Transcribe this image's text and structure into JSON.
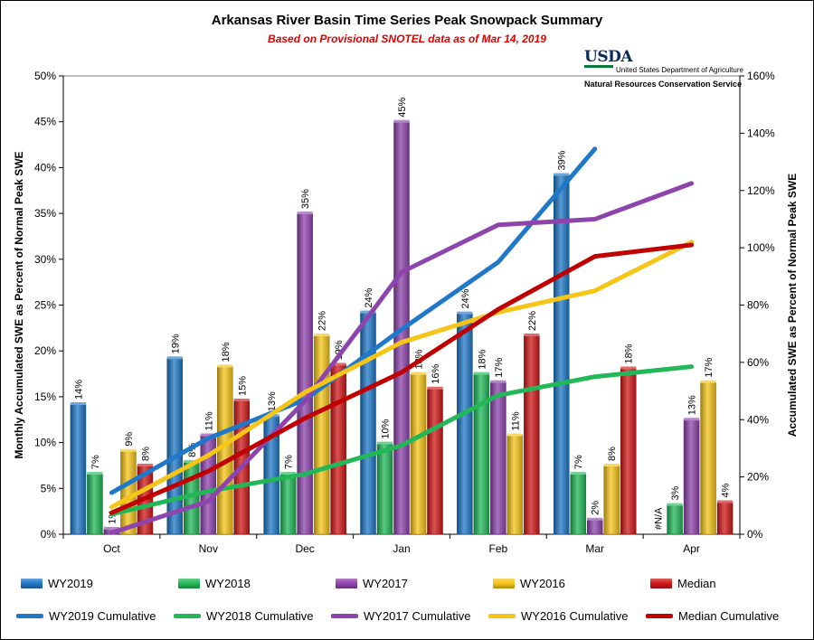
{
  "header": {
    "title": "Arkansas River Basin Time Series Peak Snowpack Summary",
    "subtitle": "Based on Provisional SNOTEL data as of Mar 14, 2019"
  },
  "logo": {
    "agency_short": "USDA",
    "department": "United States Department of Agriculture",
    "service": "Natural Resources Conservation Service"
  },
  "chart_data": {
    "type": "bar",
    "categories": [
      "Oct",
      "Nov",
      "Dec",
      "Jan",
      "Feb",
      "Mar",
      "Apr"
    ],
    "ylabel": "Monthly Accumulated SWE as Percent of Normal Peak SWE",
    "y2label": "Accumulated SWE as Percent of Normal Peak SWE",
    "ylim": [
      0,
      50
    ],
    "y2lim": [
      0,
      160
    ],
    "yticks": [
      0,
      5,
      10,
      15,
      20,
      25,
      30,
      35,
      40,
      45,
      50
    ],
    "y2ticks": [
      0,
      20,
      40,
      60,
      80,
      100,
      120,
      140,
      160
    ],
    "bar_series": [
      {
        "name": "WY2019",
        "color": "#1f78c8",
        "values": [
          14.2,
          19.2,
          12.9,
          24.2,
          24.1,
          39.2,
          null
        ],
        "labels": [
          "14%",
          "19%",
          "13%",
          "24%",
          "24%",
          "39%",
          "#N/A"
        ]
      },
      {
        "name": "WY2018",
        "color": "#22b858",
        "values": [
          6.6,
          7.9,
          6.6,
          9.9,
          17.5,
          6.6,
          3.2
        ],
        "labels": [
          "7%",
          "8%",
          "7%",
          "10%",
          "18%",
          "7%",
          "3%"
        ]
      },
      {
        "name": "WY2017",
        "color": "#8e44ad",
        "values": [
          0.6,
          10.8,
          35.0,
          45.0,
          16.6,
          1.6,
          12.5
        ],
        "labels": [
          "1%",
          "11%",
          "35%",
          "45%",
          "17%",
          "2%",
          "13%"
        ]
      },
      {
        "name": "WY2016",
        "color": "#f5c518",
        "values": [
          9.1,
          18.3,
          21.7,
          17.5,
          10.8,
          7.5,
          16.6
        ],
        "labels": [
          "9%",
          "18%",
          "22%",
          "18%",
          "11%",
          "8%",
          "17%"
        ]
      },
      {
        "name": "Median",
        "color": "#d01818",
        "values": [
          7.5,
          14.6,
          18.5,
          15.9,
          21.7,
          18.1,
          3.5
        ],
        "labels": [
          "8%",
          "15%",
          "19%",
          "16%",
          "22%",
          "18%",
          "4%"
        ]
      }
    ],
    "line_series": [
      {
        "name": "WY2019 Cumulative",
        "color": "#1f78c8",
        "values": [
          14.5,
          33.5,
          47,
          71.5,
          95,
          134.5,
          null
        ]
      },
      {
        "name": "WY2018 Cumulative",
        "color": "#22b858",
        "values": [
          7,
          15,
          21,
          31,
          48.5,
          55,
          58.5
        ]
      },
      {
        "name": "WY2017 Cumulative",
        "color": "#8e44ad",
        "values": [
          0.5,
          11.5,
          46.5,
          91.5,
          108,
          110,
          122.5
        ]
      },
      {
        "name": "WY2016 Cumulative",
        "color": "#f5c518",
        "values": [
          9.5,
          27.5,
          49.5,
          67,
          77.5,
          85,
          102
        ]
      },
      {
        "name": "Median Cumulative",
        "color": "#c00000",
        "values": [
          7.5,
          22,
          40.5,
          56.5,
          78.5,
          97,
          101
        ]
      }
    ],
    "legend_position": "bottom"
  }
}
